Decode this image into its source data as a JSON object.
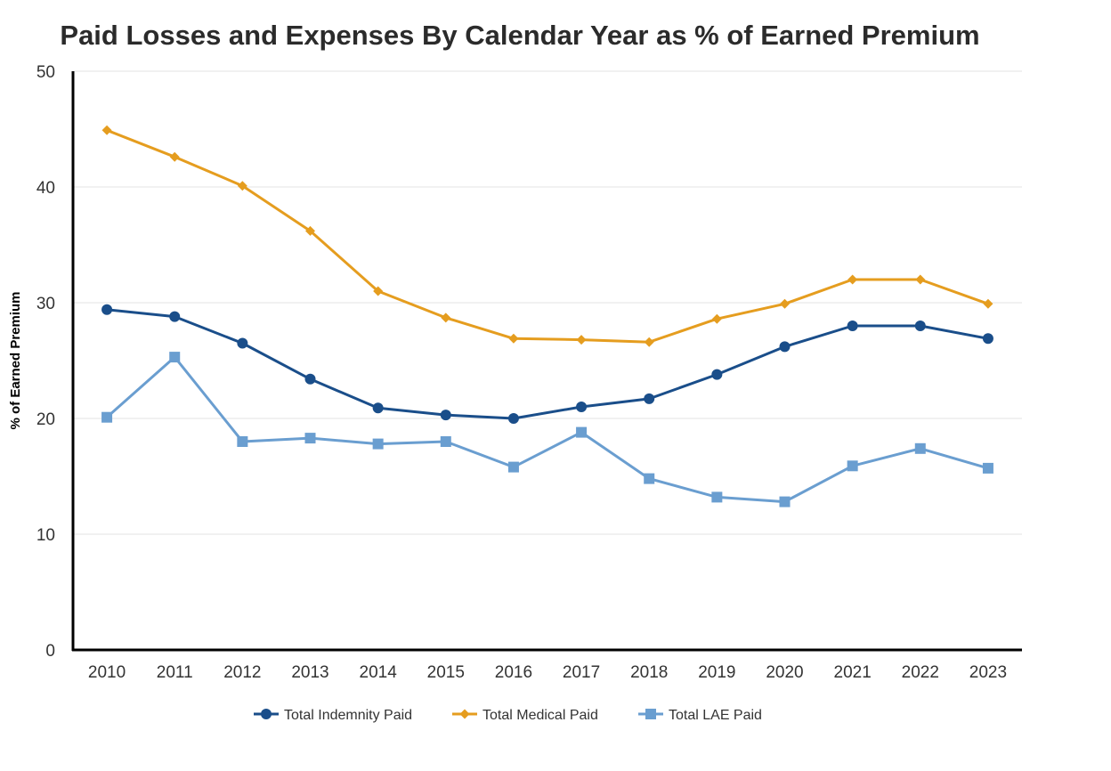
{
  "chart_data": {
    "type": "line",
    "title": "Paid Losses and Expenses By Calendar Year as % of Earned Premium",
    "xlabel": "",
    "ylabel": "% of Earned Premium",
    "ylim": [
      0,
      50
    ],
    "yticks": [
      0,
      10,
      20,
      30,
      40,
      50
    ],
    "categories": [
      "2010",
      "2011",
      "2012",
      "2013",
      "2014",
      "2015",
      "2016",
      "2017",
      "2018",
      "2019",
      "2020",
      "2021",
      "2022",
      "2023"
    ],
    "grid": true,
    "legend_position": "bottom",
    "series": [
      {
        "name": "Total Indemnity Paid",
        "color": "#1a4e8a",
        "marker": "circle",
        "values": [
          29.4,
          28.8,
          26.5,
          23.4,
          20.9,
          20.3,
          20.0,
          21.0,
          21.7,
          23.8,
          26.2,
          28.0,
          28.0,
          26.9
        ]
      },
      {
        "name": "Total Medical Paid",
        "color": "#e59d1f",
        "marker": "diamond",
        "values": [
          44.9,
          42.6,
          40.1,
          36.2,
          31.0,
          28.7,
          26.9,
          26.8,
          26.6,
          28.6,
          29.9,
          32.0,
          32.0,
          29.9
        ]
      },
      {
        "name": "Total LAE Paid",
        "color": "#6a9ed0",
        "marker": "square",
        "values": [
          20.1,
          25.3,
          18.0,
          18.3,
          17.8,
          18.0,
          15.8,
          18.8,
          14.8,
          13.2,
          12.8,
          15.9,
          17.4,
          15.7
        ]
      }
    ]
  }
}
